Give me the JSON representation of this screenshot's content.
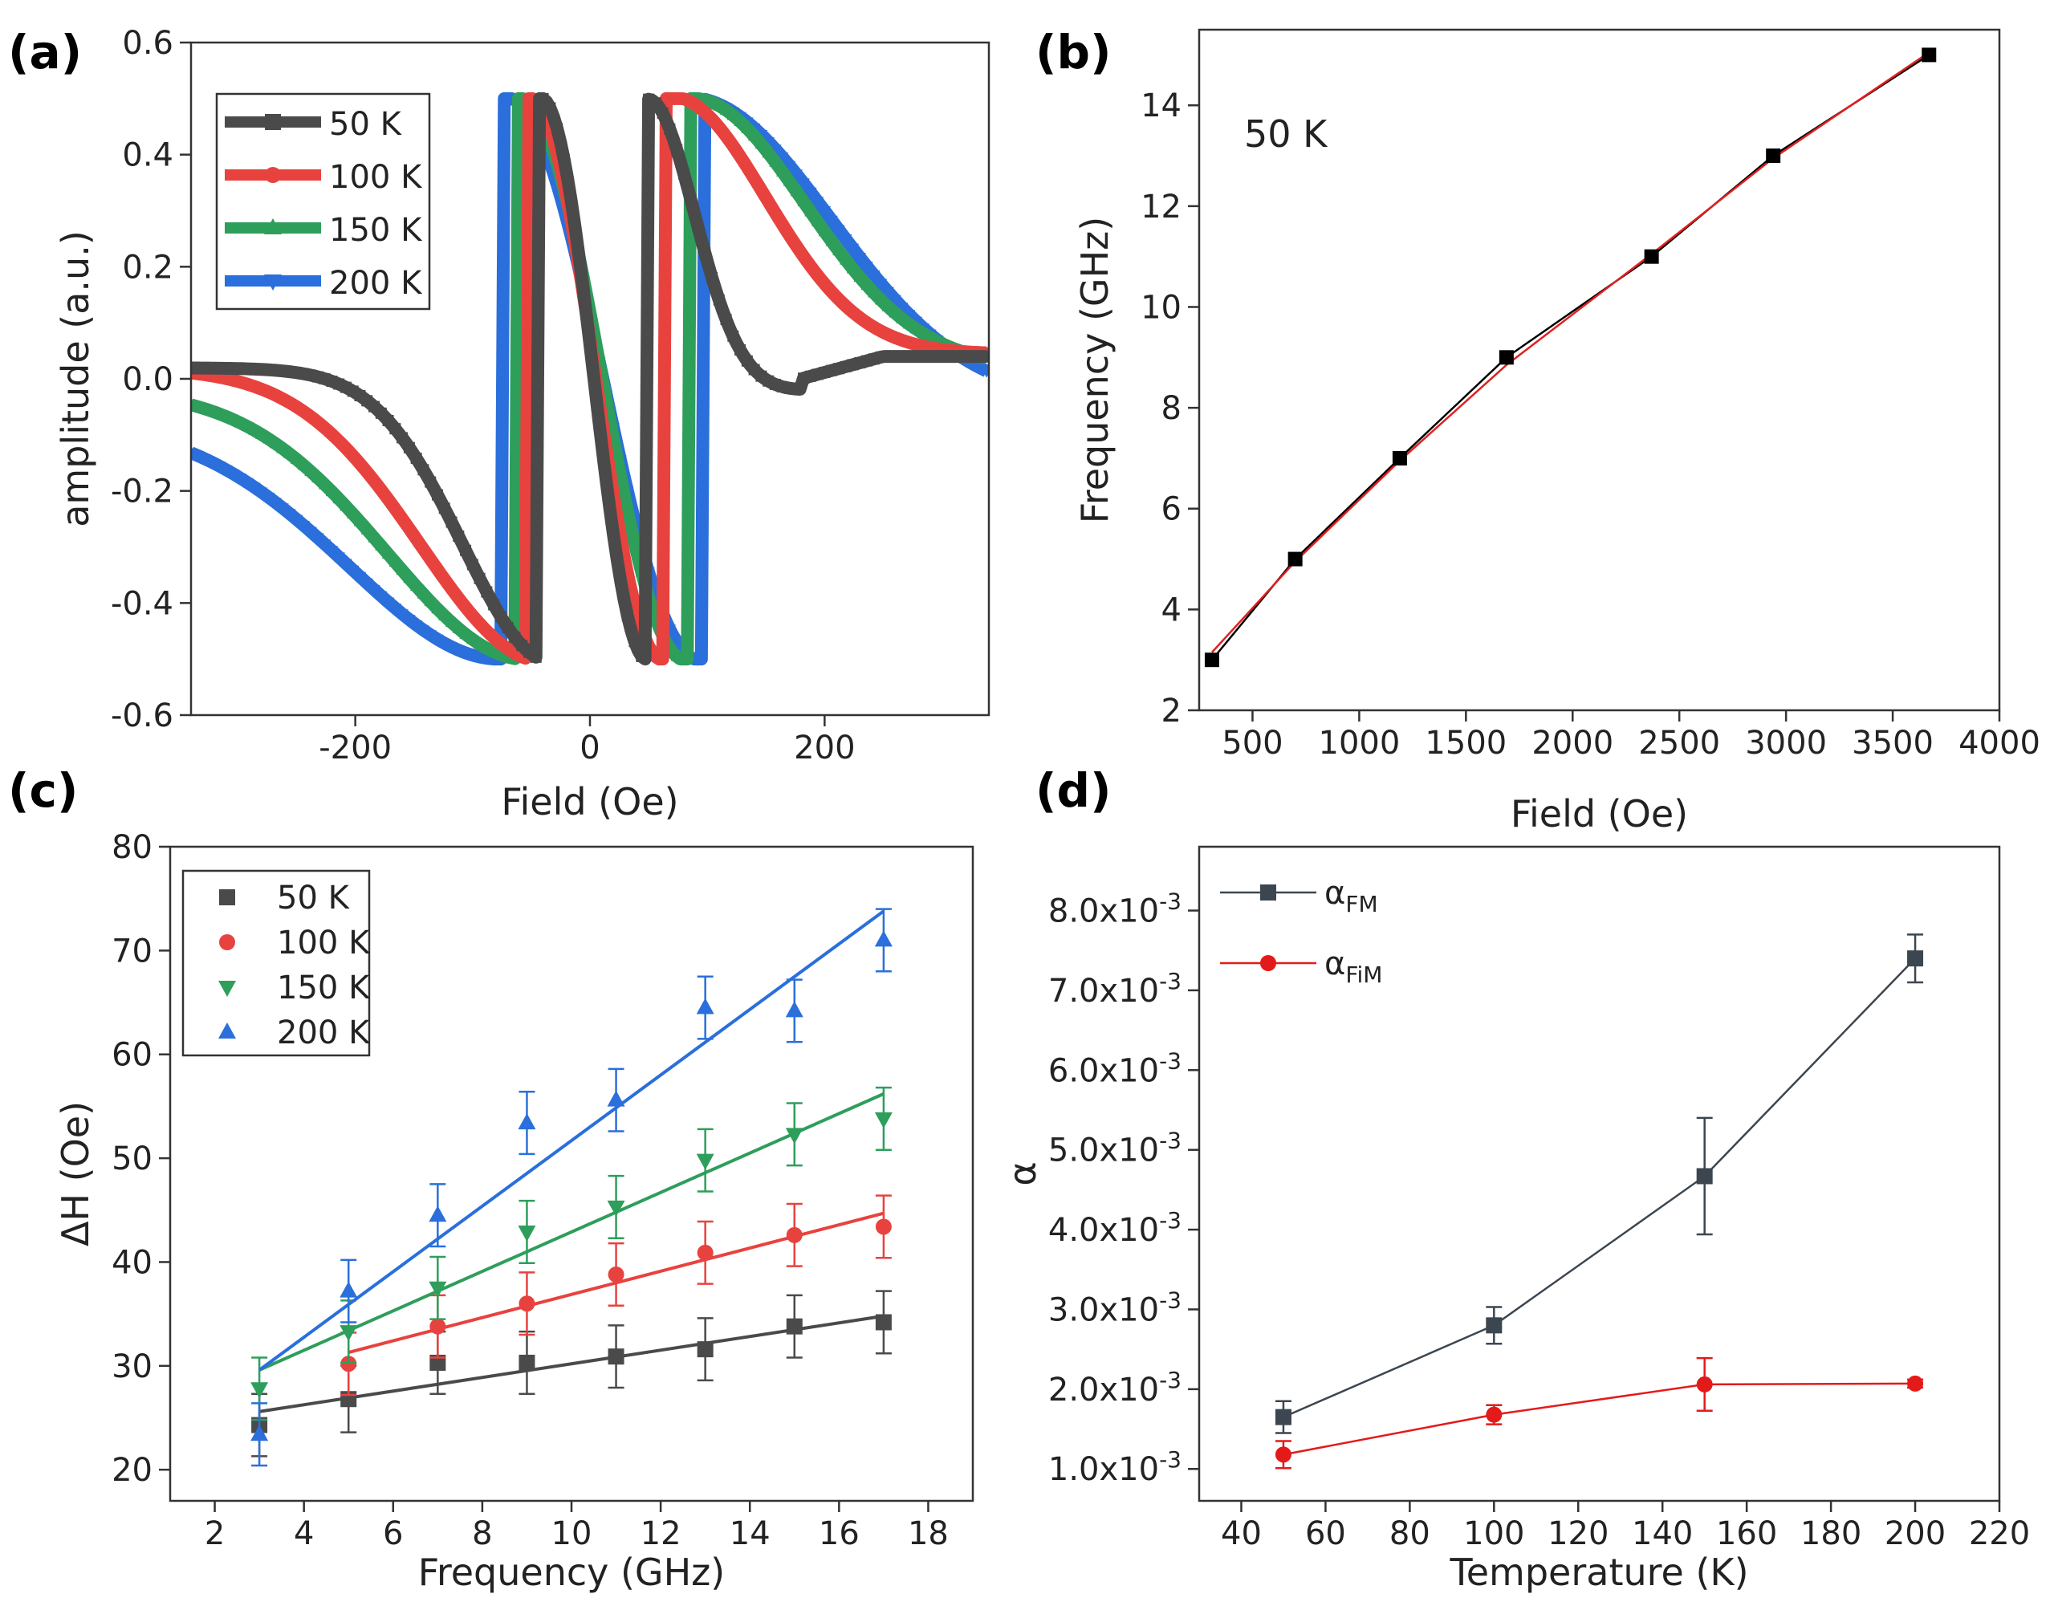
{
  "figure": {
    "panels": [
      {
        "label": "(a)"
      },
      {
        "label": "(b)"
      },
      {
        "label": "(c)"
      },
      {
        "label": "(d)"
      }
    ]
  },
  "chart_data": [
    {
      "id": "a",
      "type": "line",
      "xlabel": "Field (Oe)",
      "ylabel": "amplitude (a.u.)",
      "xlim": [
        -340,
        340
      ],
      "ylim": [
        -0.6,
        0.6
      ],
      "xticks": [
        -200,
        0,
        200
      ],
      "yticks": [
        -0.6,
        -0.4,
        -0.2,
        0.0,
        0.2,
        0.4,
        0.6
      ],
      "ytick_labels": [
        "-0.6",
        "-0.4",
        "-0.2",
        "0.0",
        "0.2",
        "0.4",
        "0.6"
      ],
      "legend_position": "top-left",
      "series": [
        {
          "name": "50 K",
          "color": "#4a4a4a",
          "marker": "square",
          "x0": -43,
          "a": -0.5,
          "dxp": 32,
          "w": 0.5,
          "hw": 100,
          "bg": 0.02,
          "dip": {
            "x": 170,
            "w": 70,
            "a": -0.07,
            "bump": 0.03
          }
        },
        {
          "name": "100 K",
          "color": "#e8423f",
          "marker": "circle",
          "x0": -53,
          "a": -0.5,
          "dxp": 40,
          "w": 0.5,
          "hw": 140,
          "bg": 0.02,
          "tail": 0.045
        },
        {
          "name": "150 K",
          "color": "#2e9e5b",
          "marker": "triangle-up",
          "x0": -62,
          "a": -0.5,
          "dxp": 50,
          "w": 0.5,
          "hw": 165,
          "bg": -0.02,
          "tail": 0.02
        },
        {
          "name": "200 K",
          "color": "#2a6fdb",
          "marker": "triangle-down",
          "x0": -73,
          "a": -0.5,
          "dxp": 58,
          "w": 0.5,
          "hw": 190,
          "bg": -0.08,
          "tail": -0.04
        }
      ]
    },
    {
      "id": "b",
      "type": "line",
      "xlabel": "Field (Oe)",
      "ylabel": "Frequency (GHz)",
      "annotation": "50 K",
      "xlim": [
        250,
        4000
      ],
      "ylim": [
        2,
        15.5
      ],
      "xticks": [
        500,
        1000,
        1500,
        2000,
        2500,
        3000,
        3500,
        4000
      ],
      "yticks": [
        2,
        4,
        6,
        8,
        10,
        12,
        14
      ],
      "series": [
        {
          "name": "data",
          "color": "#000000",
          "x": [
            310,
            700,
            1190,
            1690,
            2370,
            2940,
            3670
          ],
          "y": [
            3,
            5,
            7,
            9,
            11,
            13,
            15
          ]
        },
        {
          "name": "fit",
          "color": "#e02020",
          "x": [
            310,
            700,
            1190,
            1690,
            2370,
            2940,
            3670
          ],
          "y": [
            3.15,
            4.95,
            6.95,
            8.85,
            11.05,
            12.95,
            15.05
          ]
        }
      ]
    },
    {
      "id": "c",
      "type": "scatter",
      "xlabel": "Frequency (GHz)",
      "ylabel": "ΔH (Oe)",
      "xlim": [
        1,
        19
      ],
      "ylim": [
        17,
        80
      ],
      "xticks": [
        2,
        4,
        6,
        8,
        10,
        12,
        14,
        16,
        18
      ],
      "yticks": [
        20,
        30,
        40,
        50,
        60,
        70,
        80
      ],
      "legend_position": "top-left",
      "series": [
        {
          "name": "50 K",
          "color": "#4a4a4a",
          "marker": "square",
          "x": [
            3,
            5,
            7,
            9,
            11,
            13,
            15,
            17
          ],
          "y": [
            24.3,
            26.8,
            30.3,
            30.3,
            30.9,
            31.6,
            33.8,
            34.2
          ],
          "err": [
            3,
            3.2,
            3,
            3,
            3,
            3,
            3,
            3
          ],
          "fit": [
            [
              3,
              25.6
            ],
            [
              17,
              34.8
            ]
          ]
        },
        {
          "name": "100 K",
          "color": "#e8423f",
          "marker": "circle",
          "x": [
            5,
            7,
            9,
            11,
            13,
            15,
            17
          ],
          "y": [
            30.2,
            33.8,
            36.0,
            38.8,
            40.9,
            42.6,
            43.4
          ],
          "err": [
            3,
            3,
            3,
            3,
            3,
            3,
            3
          ],
          "fit": [
            [
              5,
              31.3
            ],
            [
              17,
              44.7
            ]
          ]
        },
        {
          "name": "150 K",
          "color": "#2e9e5b",
          "marker": "triangle-down",
          "x": [
            3,
            5,
            7,
            9,
            11,
            13,
            15,
            17
          ],
          "y": [
            27.8,
            33.3,
            37.5,
            42.9,
            45.3,
            49.8,
            52.3,
            53.8
          ],
          "err": [
            3,
            3,
            3,
            3,
            3,
            3,
            3,
            3
          ],
          "fit": [
            [
              3,
              29.6
            ],
            [
              17,
              56.2
            ]
          ]
        },
        {
          "name": "200 K",
          "color": "#2a6fdb",
          "marker": "triangle-up",
          "x": [
            3,
            5,
            7,
            9,
            11,
            13,
            15,
            17
          ],
          "y": [
            23.4,
            37.2,
            44.5,
            53.4,
            55.6,
            64.5,
            64.2,
            71.0
          ],
          "err": [
            3,
            3,
            3,
            3,
            3,
            3,
            3,
            3
          ],
          "fit": [
            [
              3,
              29.6
            ],
            [
              17,
              73.8
            ]
          ]
        }
      ]
    },
    {
      "id": "d",
      "type": "line",
      "xlabel": "Temperature (K)",
      "ylabel": "α",
      "xlim": [
        30,
        220
      ],
      "ylim": [
        0.0006,
        0.0088
      ],
      "xticks": [
        40,
        60,
        80,
        100,
        120,
        140,
        160,
        180,
        200,
        220
      ],
      "yticks": [
        0.001,
        0.002,
        0.003,
        0.004,
        0.005,
        0.006,
        0.007,
        0.008
      ],
      "ytick_mantissa": [
        "1.0x10",
        "2.0x10",
        "3.0x10",
        "4.0x10",
        "5.0x10",
        "6.0x10",
        "7.0x10",
        "8.0x10"
      ],
      "ytick_exponent": "-3",
      "legend_position": "top-left",
      "series": [
        {
          "name": "α",
          "sub": "FM",
          "color": "#3c4650",
          "marker": "square",
          "x": [
            50,
            100,
            150,
            200
          ],
          "y": [
            0.00165,
            0.0028,
            0.00467,
            0.0074
          ],
          "err": [
            0.0002,
            0.00023,
            0.00073,
            0.0003
          ]
        },
        {
          "name": "α",
          "sub": "FiM",
          "color": "#e41a1a",
          "marker": "circle",
          "x": [
            50,
            100,
            150,
            200
          ],
          "y": [
            0.00118,
            0.00168,
            0.00206,
            0.00207
          ],
          "err": [
            0.00017,
            0.00012,
            0.00033,
            5e-05
          ]
        }
      ]
    }
  ]
}
